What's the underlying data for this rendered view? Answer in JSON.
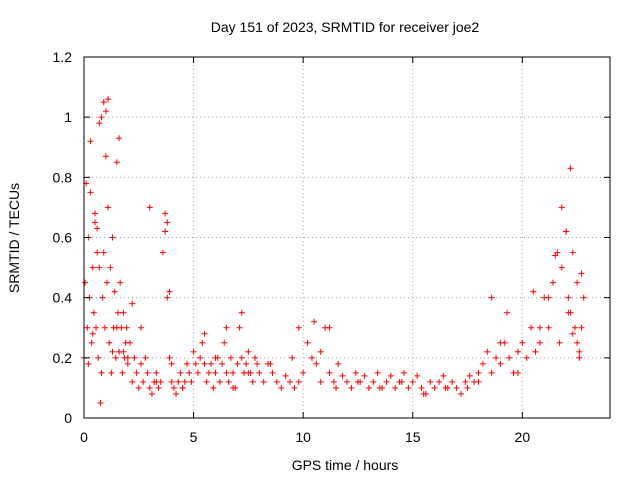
{
  "chart_data": {
    "type": "scatter",
    "title": "Day 151 of 2023, SRMTID for receiver joe2",
    "xlabel": "GPS time / hours",
    "ylabel": "SRMTID / TECUs",
    "xlim": [
      0,
      24
    ],
    "ylim": [
      0,
      1.2
    ],
    "xticks": [
      0,
      5,
      10,
      15,
      20
    ],
    "xtick_labels": [
      "0",
      "5",
      "10",
      "15",
      "20"
    ],
    "yticks": [
      0,
      0.2,
      0.4,
      0.6,
      0.8,
      1.0,
      1.2
    ],
    "ytick_labels": [
      "0",
      "0.2",
      "0.4",
      "0.6",
      "0.8",
      "1",
      "1.2"
    ],
    "grid": true,
    "marker": "+",
    "color": "#ff0000",
    "series": [
      {
        "name": "SRMTID",
        "x": [
          0.0,
          0.05,
          0.1,
          0.15,
          0.2,
          0.25,
          0.3,
          0.35,
          0.4,
          0.45,
          0.5,
          0.55,
          0.6,
          0.65,
          0.7,
          0.75,
          0.8,
          0.85,
          0.9,
          0.95,
          1.0,
          1.05,
          1.1,
          1.15,
          1.2,
          1.25,
          1.3,
          1.35,
          1.4,
          1.45,
          1.5,
          1.55,
          1.6,
          1.65,
          1.7,
          1.75,
          1.8,
          1.85,
          1.9,
          1.95,
          2.0,
          2.1,
          2.2,
          2.3,
          2.4,
          2.5,
          2.6,
          2.7,
          2.8,
          2.9,
          3.0,
          3.1,
          3.2,
          3.3,
          3.4,
          3.5,
          3.6,
          3.7,
          3.8,
          3.9,
          4.0,
          4.1,
          4.2,
          4.3,
          4.4,
          4.5,
          4.6,
          4.7,
          4.8,
          4.9,
          5.0,
          5.1,
          5.2,
          5.3,
          5.4,
          5.5,
          5.6,
          5.7,
          5.8,
          5.9,
          6.0,
          6.1,
          6.2,
          6.3,
          6.4,
          6.5,
          6.6,
          6.7,
          6.8,
          6.9,
          7.0,
          7.1,
          7.2,
          7.3,
          7.4,
          7.5,
          7.6,
          7.7,
          7.8,
          7.9,
          8.0,
          8.2,
          8.4,
          8.6,
          8.8,
          9.0,
          9.2,
          9.4,
          9.6,
          9.8,
          10.0,
          10.2,
          10.4,
          10.6,
          10.8,
          11.0,
          11.2,
          11.4,
          11.6,
          11.8,
          12.0,
          12.2,
          12.4,
          12.6,
          12.8,
          13.0,
          13.2,
          13.4,
          13.6,
          13.8,
          14.0,
          14.2,
          14.4,
          14.6,
          14.8,
          15.0,
          15.2,
          15.4,
          15.6,
          15.8,
          16.0,
          16.2,
          16.4,
          16.6,
          16.8,
          17.0,
          17.2,
          17.4,
          17.6,
          17.8,
          18.0,
          18.2,
          18.4,
          18.6,
          18.8,
          19.0,
          19.2,
          19.4,
          19.6,
          19.8,
          20.0,
          20.2,
          20.4,
          20.6,
          20.8,
          21.0,
          21.2,
          21.4,
          21.6,
          21.8,
          22.0,
          22.1,
          22.2,
          22.3,
          22.4,
          22.5,
          22.6,
          22.7,
          22.8,
          0.3,
          0.5,
          0.7,
          0.9,
          1.1,
          1.6,
          0.6,
          0.8,
          1.0,
          3.0,
          3.7,
          3.8,
          3.9,
          2.2,
          2.6,
          21.5,
          21.8,
          22.0,
          22.2,
          22.3,
          22.5,
          22.7,
          6.5,
          7.2,
          9.8,
          10.5,
          11.2,
          18.6,
          19.3,
          20.5,
          0.2,
          0.4,
          1.3,
          1.5,
          1.8,
          2.0,
          3.3,
          4.0,
          4.5,
          5.5,
          6.0,
          6.8,
          7.5,
          8.5,
          9.5,
          10.8,
          11.5,
          12.5,
          13.5,
          14.5,
          15.5,
          16.5,
          17.5,
          18.0,
          19.0,
          19.8,
          20.8,
          21.2,
          21.7,
          22.1,
          22.6
        ],
        "y": [
          0.2,
          0.45,
          0.78,
          0.3,
          0.6,
          0.4,
          0.75,
          0.25,
          0.5,
          0.35,
          0.68,
          0.3,
          0.55,
          0.2,
          0.98,
          0.05,
          0.15,
          0.4,
          0.55,
          0.3,
          1.02,
          0.45,
          0.7,
          0.25,
          0.5,
          0.15,
          0.6,
          0.3,
          0.42,
          0.2,
          0.85,
          0.35,
          0.22,
          0.45,
          0.3,
          0.15,
          0.35,
          0.2,
          0.25,
          0.3,
          0.18,
          0.25,
          0.12,
          0.2,
          0.15,
          0.1,
          0.18,
          0.12,
          0.2,
          0.15,
          0.1,
          0.08,
          0.12,
          0.15,
          0.1,
          0.12,
          0.55,
          0.62,
          0.4,
          0.2,
          0.12,
          0.1,
          0.08,
          0.12,
          0.15,
          0.1,
          0.12,
          0.18,
          0.15,
          0.12,
          0.22,
          0.18,
          0.15,
          0.2,
          0.25,
          0.18,
          0.12,
          0.15,
          0.18,
          0.1,
          0.15,
          0.2,
          0.12,
          0.18,
          0.25,
          0.15,
          0.12,
          0.2,
          0.15,
          0.1,
          0.18,
          0.3,
          0.2,
          0.15,
          0.18,
          0.22,
          0.15,
          0.12,
          0.2,
          0.18,
          0.15,
          0.12,
          0.18,
          0.15,
          0.12,
          0.1,
          0.14,
          0.12,
          0.1,
          0.12,
          0.15,
          0.25,
          0.2,
          0.18,
          0.22,
          0.3,
          0.15,
          0.12,
          0.18,
          0.14,
          0.12,
          0.1,
          0.15,
          0.12,
          0.14,
          0.1,
          0.12,
          0.15,
          0.1,
          0.12,
          0.14,
          0.1,
          0.12,
          0.15,
          0.1,
          0.12,
          0.14,
          0.1,
          0.08,
          0.12,
          0.1,
          0.12,
          0.14,
          0.1,
          0.12,
          0.1,
          0.08,
          0.12,
          0.14,
          0.12,
          0.15,
          0.18,
          0.22,
          0.15,
          0.2,
          0.18,
          0.25,
          0.2,
          0.15,
          0.22,
          0.25,
          0.2,
          0.3,
          0.22,
          0.25,
          0.4,
          0.3,
          0.45,
          0.55,
          0.5,
          0.62,
          0.4,
          0.35,
          0.28,
          0.3,
          0.25,
          0.22,
          0.3,
          0.4,
          0.92,
          0.65,
          0.5,
          1.05,
          1.06,
          0.93,
          0.63,
          1.0,
          0.87,
          0.7,
          0.68,
          0.65,
          0.42,
          0.38,
          0.3,
          0.54,
          0.7,
          0.62,
          0.83,
          0.55,
          0.45,
          0.48,
          0.3,
          0.35,
          0.3,
          0.32,
          0.3,
          0.4,
          0.35,
          0.42,
          0.18,
          0.28,
          0.22,
          0.3,
          0.22,
          0.2,
          0.12,
          0.18,
          0.1,
          0.28,
          0.2,
          0.1,
          0.15,
          0.18,
          0.2,
          0.12,
          0.1,
          0.12,
          0.1,
          0.12,
          0.08,
          0.1,
          0.1,
          0.12,
          0.25,
          0.15,
          0.3,
          0.4,
          0.25,
          0.35,
          0.2
        ]
      }
    ]
  }
}
